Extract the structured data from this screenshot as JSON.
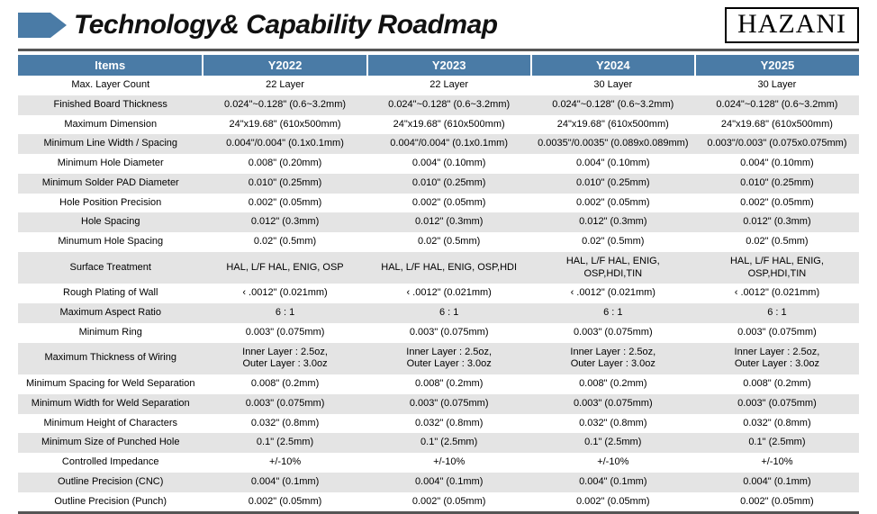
{
  "header": {
    "title": "Technology& Capability Roadmap",
    "logo": "HAZANI"
  },
  "table": {
    "header_bg": "#4a7ba6",
    "row_even_bg": "#e4e4e4",
    "row_odd_bg": "#ffffff",
    "columns": [
      "Items",
      "Y2022",
      "Y2023",
      "Y2024",
      "Y2025"
    ],
    "rows": [
      [
        "Max. Layer Count",
        "22 Layer",
        "22 Layer",
        "30 Layer",
        "30 Layer"
      ],
      [
        "Finished Board Thickness",
        "0.024\"~0.128\" (0.6~3.2mm)",
        "0.024\"~0.128\" (0.6~3.2mm)",
        "0.024\"~0.128\" (0.6~3.2mm)",
        "0.024\"~0.128\" (0.6~3.2mm)"
      ],
      [
        "Maximum Dimension",
        "24\"x19.68\" (610x500mm)",
        "24\"x19.68\" (610x500mm)",
        "24\"x19.68\" (610x500mm)",
        "24\"x19.68\" (610x500mm)"
      ],
      [
        "Minimum Line Width / Spacing",
        "0.004\"/0.004\" (0.1x0.1mm)",
        "0.004\"/0.004\" (0.1x0.1mm)",
        "0.0035\"/0.0035\" (0.089x0.089mm)",
        "0.003\"/0.003\" (0.075x0.075mm)"
      ],
      [
        "Minimum Hole Diameter",
        "0.008\" (0.20mm)",
        "0.004\" (0.10mm)",
        "0.004\" (0.10mm)",
        "0.004\" (0.10mm)"
      ],
      [
        "Minimum Solder PAD Diameter",
        "0.010\" (0.25mm)",
        "0.010\" (0.25mm)",
        "0.010\" (0.25mm)",
        "0.010\" (0.25mm)"
      ],
      [
        "Hole Position Precision",
        "0.002\" (0.05mm)",
        "0.002\" (0.05mm)",
        "0.002\" (0.05mm)",
        "0.002\" (0.05mm)"
      ],
      [
        "Hole Spacing",
        "0.012\" (0.3mm)",
        "0.012\" (0.3mm)",
        "0.012\" (0.3mm)",
        "0.012\" (0.3mm)"
      ],
      [
        "Minumum Hole Spacing",
        "0.02\" (0.5mm)",
        "0.02\" (0.5mm)",
        "0.02\" (0.5mm)",
        "0.02\" (0.5mm)"
      ],
      [
        "Surface Treatment",
        "HAL, L/F HAL, ENIG, OSP",
        "HAL, L/F HAL, ENIG, OSP,HDI",
        "HAL, L/F HAL, ENIG, OSP,HDI,TIN",
        "HAL, L/F HAL, ENIG, OSP,HDI,TIN"
      ],
      [
        "Rough Plating of Wall",
        "‹ .0012\" (0.021mm)",
        "‹ .0012\" (0.021mm)",
        "‹ .0012\" (0.021mm)",
        "‹ .0012\" (0.021mm)"
      ],
      [
        "Maximum Aspect Ratio",
        "6 : 1",
        "6 : 1",
        "6 : 1",
        "6 : 1"
      ],
      [
        "Minimum Ring",
        "0.003\" (0.075mm)",
        "0.003\" (0.075mm)",
        "0.003\" (0.075mm)",
        "0.003\" (0.075mm)"
      ],
      [
        "Maximum Thickness of Wiring",
        "Inner Layer : 2.5oz,\nOuter Layer : 3.0oz",
        "Inner Layer : 2.5oz,\nOuter Layer : 3.0oz",
        "Inner Layer : 2.5oz,\nOuter Layer : 3.0oz",
        "Inner Layer : 2.5oz,\nOuter Layer : 3.0oz"
      ],
      [
        "Minimum Spacing for Weld Separation",
        "0.008\" (0.2mm)",
        "0.008\" (0.2mm)",
        "0.008\" (0.2mm)",
        "0.008\" (0.2mm)"
      ],
      [
        "Minimum Width for Weld Separation",
        "0.003\" (0.075mm)",
        "0.003\" (0.075mm)",
        "0.003\" (0.075mm)",
        "0.003\" (0.075mm)"
      ],
      [
        "Minimum Height of Characters",
        "0.032\" (0.8mm)",
        "0.032\" (0.8mm)",
        "0.032\" (0.8mm)",
        "0.032\" (0.8mm)"
      ],
      [
        "Minimum Size of Punched Hole",
        "0.1\" (2.5mm)",
        "0.1\" (2.5mm)",
        "0.1\" (2.5mm)",
        "0.1\" (2.5mm)"
      ],
      [
        "Controlled Impedance",
        "+/-10%",
        "+/-10%",
        "+/-10%",
        "+/-10%"
      ],
      [
        "Outline Precision (CNC)",
        "0.004\" (0.1mm)",
        "0.004\" (0.1mm)",
        "0.004\" (0.1mm)",
        "0.004\" (0.1mm)"
      ],
      [
        "Outline Precision (Punch)",
        "0.002\" (0.05mm)",
        "0.002\" (0.05mm)",
        "0.002\" (0.05mm)",
        "0.002\" (0.05mm)"
      ]
    ]
  }
}
